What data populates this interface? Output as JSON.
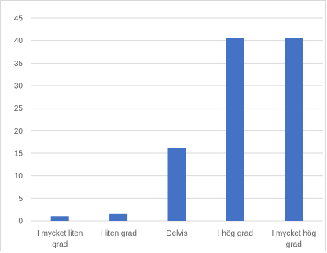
{
  "chart_data": {
    "type": "bar",
    "title": "",
    "xlabel": "",
    "ylabel": "",
    "categories": [
      [
        "I mycket liten",
        "grad"
      ],
      [
        "I liten grad"
      ],
      [
        "Delvis"
      ],
      [
        "I hög grad"
      ],
      [
        "I mycket hög",
        "grad"
      ]
    ],
    "values": [
      1,
      1.6,
      16.2,
      40.5,
      40.5
    ],
    "ylim": [
      0,
      45
    ],
    "yticks": [
      0,
      5,
      10,
      15,
      20,
      25,
      30,
      35,
      40,
      45
    ],
    "grid": true,
    "legend": "none",
    "colors": {
      "bar": "#4472C4",
      "grid": "#d9d9d9",
      "text": "#595959"
    }
  }
}
